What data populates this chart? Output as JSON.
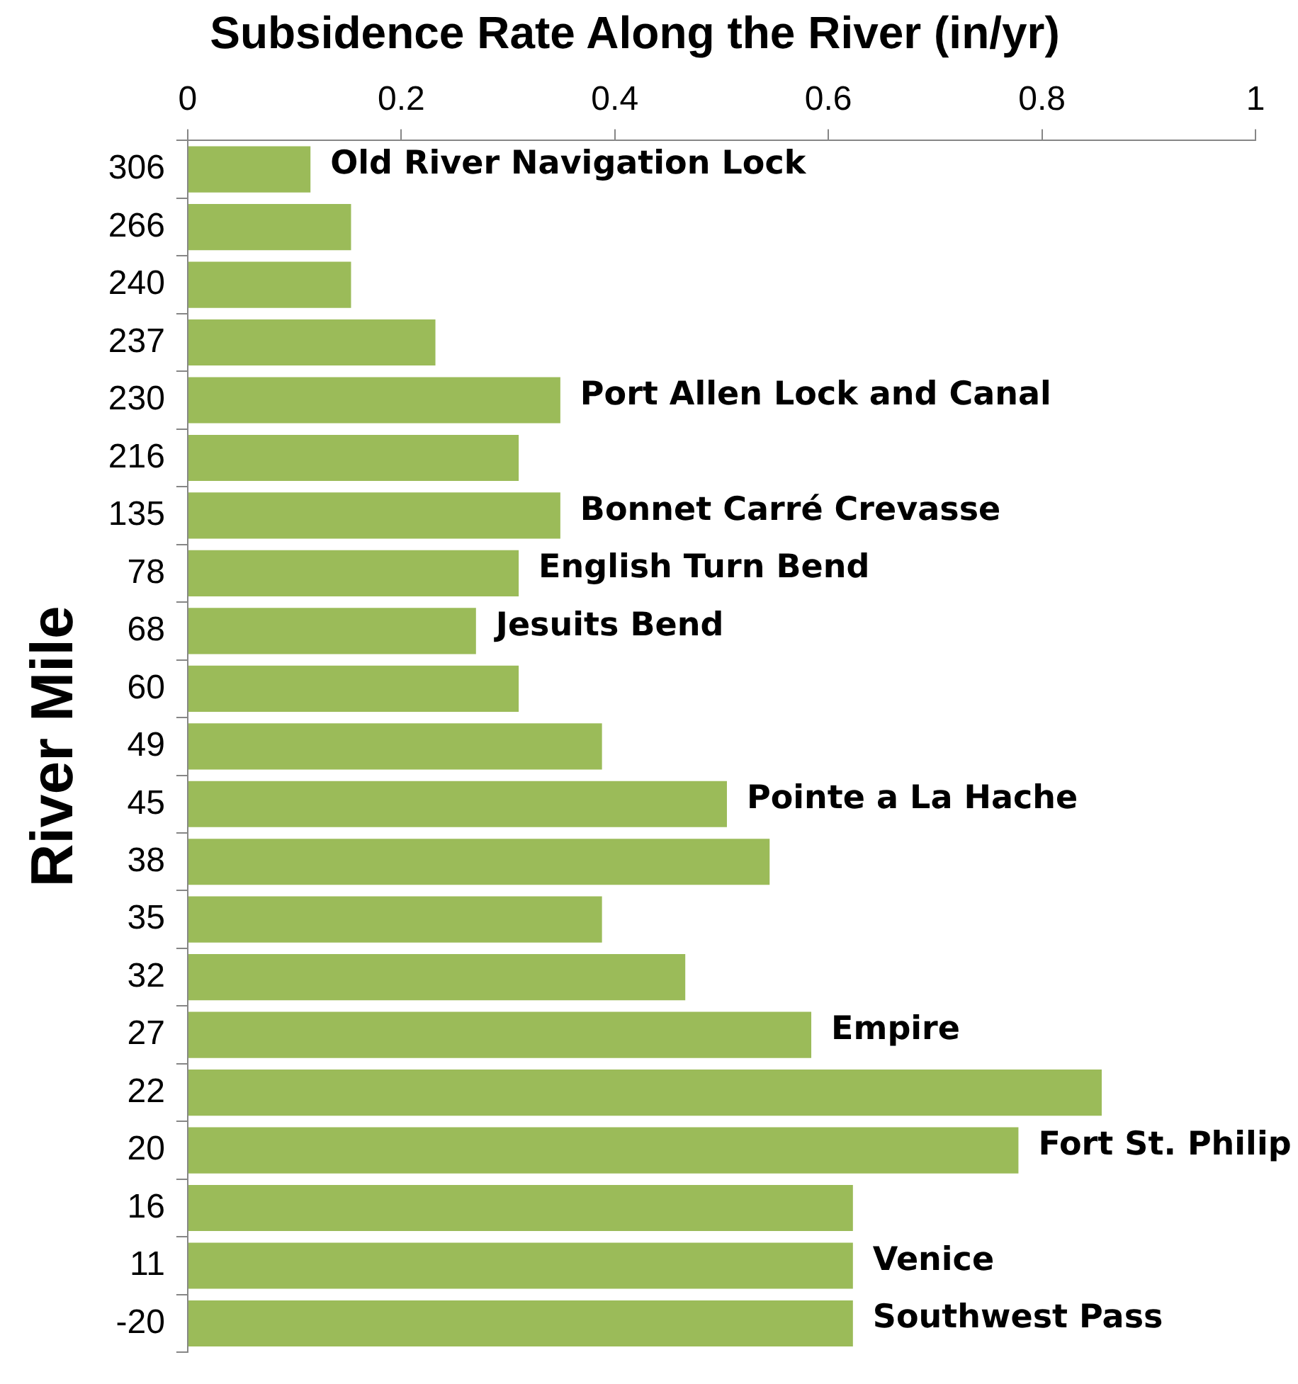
{
  "chart_data": {
    "type": "bar",
    "orientation": "horizontal",
    "title": "Subsidence Rate Along the River (in/yr)",
    "ylabel": "River Mile",
    "categories": [
      "306",
      "266",
      "240",
      "237",
      "230",
      "216",
      "135",
      "78",
      "68",
      "60",
      "49",
      "45",
      "38",
      "35",
      "32",
      "27",
      "22",
      "20",
      "16",
      "11",
      "-20"
    ],
    "values": [
      0.115,
      0.153,
      0.153,
      0.232,
      0.349,
      0.31,
      0.349,
      0.31,
      0.27,
      0.31,
      0.388,
      0.505,
      0.545,
      0.388,
      0.466,
      0.584,
      0.856,
      0.778,
      0.623,
      0.623,
      0.623
    ],
    "color": "#9bbb59",
    "xlim": [
      0,
      1
    ],
    "xticks": [
      0,
      0.2,
      0.4,
      0.6,
      0.8,
      1
    ],
    "annotations": [
      {
        "text": "Old River Navigation Lock",
        "x": 0.115,
        "y": "306"
      },
      {
        "text": "Port Allen Lock and Canal",
        "x": 0.349,
        "y": "230"
      },
      {
        "text": "Bonnet Carré Crevasse",
        "x": 0.349,
        "y": "135"
      },
      {
        "text": "English Turn Bend",
        "x": 0.31,
        "y": "78"
      },
      {
        "text": "Jesuits Bend",
        "x": 0.27,
        "y": "68"
      },
      {
        "text": "Pointe a La Hache",
        "x": 0.505,
        "y": "45"
      },
      {
        "text": "Empire",
        "x": 0.584,
        "y": "27"
      },
      {
        "text": "Fort St. Philip",
        "x": 0.778,
        "y": "20"
      },
      {
        "text": "Venice",
        "x": 0.623,
        "y": "11"
      },
      {
        "text": "Southwest Pass",
        "x": 0.623,
        "y": "-20"
      }
    ]
  }
}
